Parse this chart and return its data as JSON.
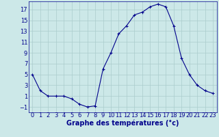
{
  "x": [
    0,
    1,
    2,
    3,
    4,
    5,
    6,
    7,
    8,
    9,
    10,
    11,
    12,
    13,
    14,
    15,
    16,
    17,
    18,
    19,
    20,
    21,
    22,
    23
  ],
  "y": [
    5,
    2,
    1,
    1,
    1,
    0.5,
    -0.5,
    -1,
    -0.8,
    6,
    9,
    12.5,
    14,
    16,
    16.5,
    17.5,
    18,
    17.5,
    14,
    8,
    5,
    3,
    2,
    1.5
  ],
  "line_color": "#00008B",
  "marker": "+",
  "marker_size": 3,
  "marker_color": "#00008B",
  "bg_color": "#cce8e8",
  "grid_color": "#aacccc",
  "xlabel": "Graphe des températures (°c)",
  "xlabel_color": "#00008B",
  "xlabel_fontsize": 7,
  "tick_color": "#00008B",
  "tick_fontsize": 6,
  "xlim": [
    -0.5,
    23.5
  ],
  "ylim": [
    -2,
    18.5
  ],
  "yticks": [
    -1,
    1,
    3,
    5,
    7,
    9,
    11,
    13,
    15,
    17
  ],
  "xticks": [
    0,
    1,
    2,
    3,
    4,
    5,
    6,
    7,
    8,
    9,
    10,
    11,
    12,
    13,
    14,
    15,
    16,
    17,
    18,
    19,
    20,
    21,
    22,
    23
  ]
}
